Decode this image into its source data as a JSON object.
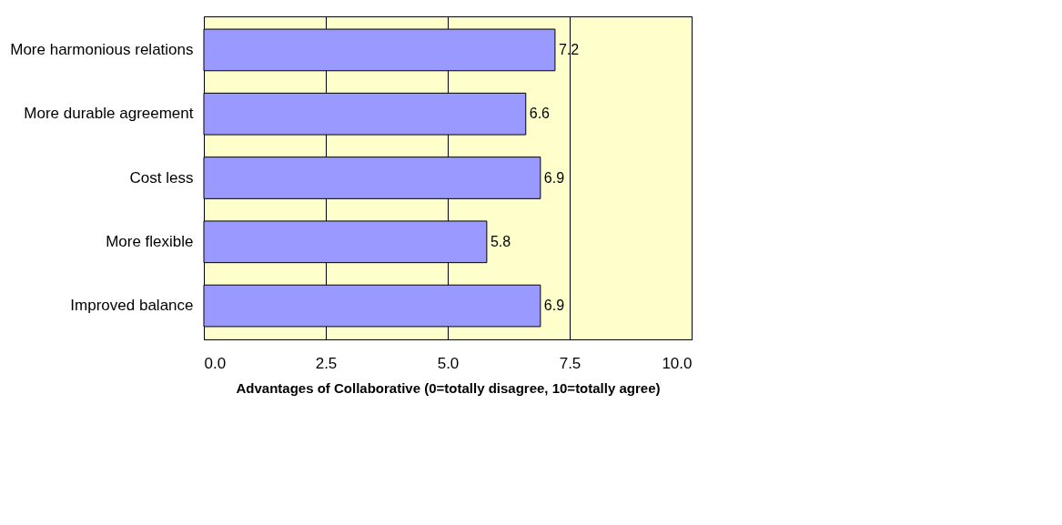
{
  "chart_data": {
    "type": "bar",
    "orientation": "horizontal",
    "categories": [
      "More harmonious relations",
      "More durable agreement",
      "Cost less",
      "More flexible",
      "Improved balance"
    ],
    "values": [
      7.2,
      6.6,
      6.9,
      5.8,
      6.9
    ],
    "color": "#9999ff",
    "xlim": [
      0,
      10
    ],
    "xticks": [
      {
        "value": 0,
        "label": "0.0"
      },
      {
        "value": 2.5,
        "label": "2.5"
      },
      {
        "value": 5,
        "label": "5.0"
      },
      {
        "value": 7.5,
        "label": "7.5"
      },
      {
        "value": 10,
        "label": "10.0"
      }
    ],
    "xlabel": "Advantages of Collaborative (0=totally disagree, 10=totally agree)",
    "grid": "x",
    "data_labels": true
  }
}
